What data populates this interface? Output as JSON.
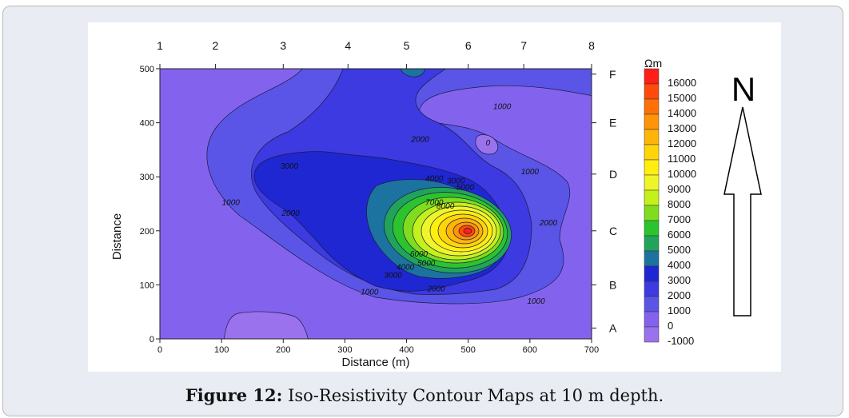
{
  "caption": {
    "label": "Figure 12:",
    "text": "Iso-Resistivity Contour Maps at 10 m depth."
  },
  "chart_data": {
    "type": "contour",
    "xlabel": "Distance (m)",
    "ylabel": "Distance",
    "xlim": [
      0,
      700
    ],
    "ylim": [
      0,
      500
    ],
    "x_ticks": [
      0,
      100,
      200,
      300,
      400,
      500,
      600,
      700
    ],
    "y_ticks": [
      0,
      100,
      200,
      300,
      400,
      500
    ],
    "top_labels": [
      {
        "label": "1",
        "x": 0
      },
      {
        "label": "2",
        "x": 90
      },
      {
        "label": "3",
        "x": 200
      },
      {
        "label": "4",
        "x": 305
      },
      {
        "label": "5",
        "x": 400
      },
      {
        "label": "6",
        "x": 500
      },
      {
        "label": "7",
        "x": 590
      },
      {
        "label": "8",
        "x": 700
      }
    ],
    "right_labels": [
      {
        "label": "F",
        "y": 490
      },
      {
        "label": "E",
        "y": 400
      },
      {
        "label": "D",
        "y": 305
      },
      {
        "label": "C",
        "y": 200
      },
      {
        "label": "B",
        "y": 100
      },
      {
        "label": "A",
        "y": 20
      }
    ],
    "colorbar": {
      "unit": "Ωm",
      "levels": [
        16000,
        15000,
        14000,
        13000,
        12000,
        11000,
        10000,
        9000,
        8000,
        7000,
        6000,
        5000,
        4000,
        3000,
        2000,
        1000,
        0,
        -1000
      ]
    },
    "level_colors": {
      "-1000": "#9b72ee",
      "0": "#8363ee",
      "1000": "#5a55e6",
      "2000": "#3c3ae0",
      "3000": "#1f27d2",
      "4000": "#1d73a0",
      "5000": "#22a35c",
      "6000": "#2cc42e",
      "7000": "#7fdc1e",
      "8000": "#c4f01b",
      "9000": "#eef52b",
      "10000": "#ffee10",
      "11000": "#ffd50a",
      "12000": "#ffb508",
      "13000": "#ff9408",
      "14000": "#ff7108",
      "15000": "#ff4a0c",
      "16000": "#ff1e18"
    },
    "peak": {
      "x": 500,
      "y": 200,
      "value": 16000
    },
    "contour_labels": [
      {
        "text": "1000",
        "x": 555,
        "y": 425
      },
      {
        "text": "2000",
        "x": 422,
        "y": 365
      },
      {
        "text": "3000",
        "x": 210,
        "y": 315
      },
      {
        "text": "4000",
        "x": 445,
        "y": 292
      },
      {
        "text": "3000",
        "x": 480,
        "y": 288
      },
      {
        "text": "5000",
        "x": 495,
        "y": 276
      },
      {
        "text": "1000",
        "x": 600,
        "y": 305
      },
      {
        "text": "1000",
        "x": 115,
        "y": 248
      },
      {
        "text": "2000",
        "x": 212,
        "y": 228
      },
      {
        "text": "7000",
        "x": 445,
        "y": 248
      },
      {
        "text": "8000",
        "x": 463,
        "y": 241
      },
      {
        "text": "2000",
        "x": 630,
        "y": 210
      },
      {
        "text": "6000",
        "x": 420,
        "y": 152
      },
      {
        "text": "5000",
        "x": 432,
        "y": 135
      },
      {
        "text": "4000",
        "x": 398,
        "y": 128
      },
      {
        "text": "3000",
        "x": 378,
        "y": 113
      },
      {
        "text": "1000",
        "x": 340,
        "y": 82
      },
      {
        "text": "2000",
        "x": 448,
        "y": 88
      },
      {
        "text": "1000",
        "x": 610,
        "y": 65
      },
      {
        "text": "0",
        "x": 532,
        "y": 358
      }
    ]
  },
  "compass": {
    "label": "N"
  }
}
